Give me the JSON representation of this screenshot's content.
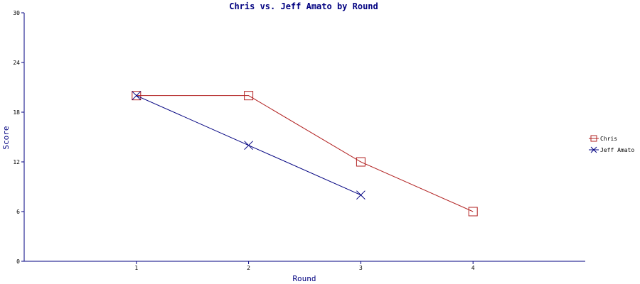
{
  "chart_data": {
    "type": "line",
    "title": "Chris vs. Jeff Amato by Round",
    "xlabel": "Round",
    "ylabel": "Score",
    "categories": [
      "1",
      "2",
      "3",
      "4"
    ],
    "x": [
      1,
      2,
      3,
      4
    ],
    "xlim": [
      0,
      5
    ],
    "ylim": [
      0,
      30
    ],
    "yticks": [
      0,
      6,
      12,
      18,
      24,
      30
    ],
    "grid": false,
    "legend": "right",
    "series": [
      {
        "name": "Chris",
        "color": "#b22222",
        "marker": "square",
        "x": [
          1,
          2,
          3,
          4
        ],
        "values": [
          20,
          20,
          12,
          6
        ]
      },
      {
        "name": "Jeff Amato",
        "color": "#000080",
        "marker": "cross",
        "x": [
          1,
          2,
          3
        ],
        "values": [
          20,
          14,
          8
        ]
      }
    ]
  }
}
